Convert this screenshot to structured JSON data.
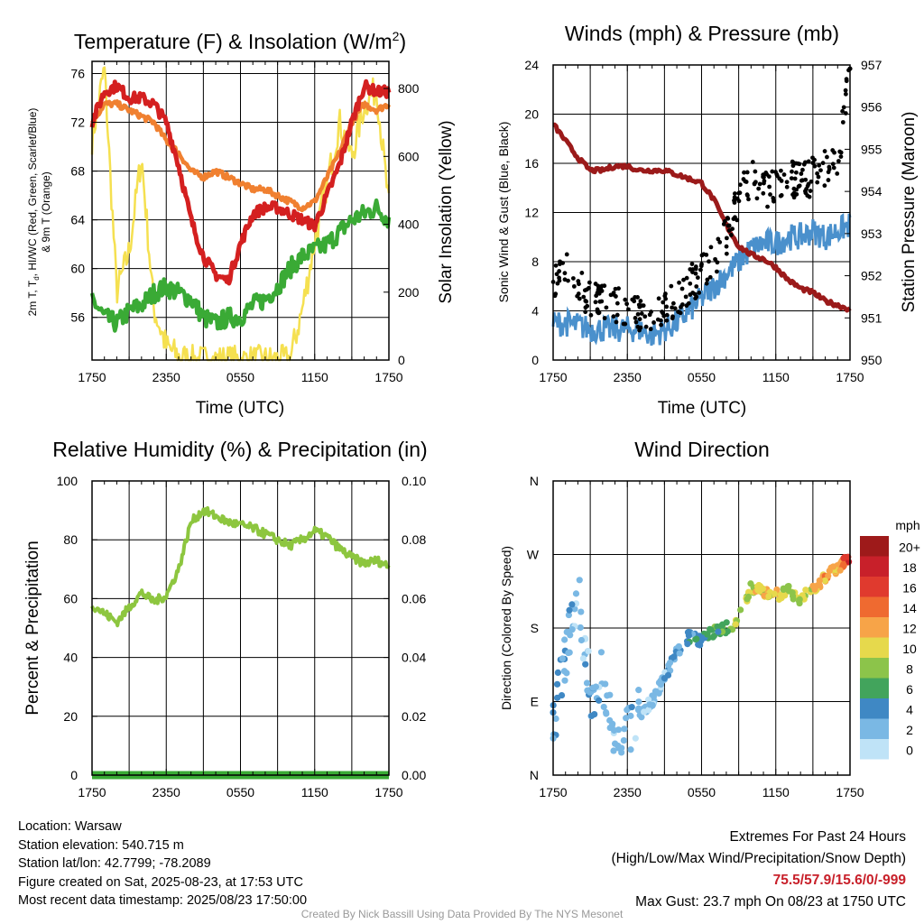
{
  "panels": {
    "temperature": {
      "title": "Temperature (F) & Insolation (W/m",
      "title_sup": "2",
      "title_end": ")",
      "ylabel_lines": [
        "2m T, T",
        "d",
        ", HI/WC (Red, Green, Scarlet/Blue)",
        "& 9m T (Orange)"
      ],
      "y2label": "Solar Insolation (Yellow)",
      "xlabel": "Time (UTC)",
      "y_ticks": [
        "56",
        "60",
        "64",
        "68",
        "72",
        "76"
      ],
      "y2_ticks": [
        "0",
        "200",
        "400",
        "600",
        "800"
      ]
    },
    "winds": {
      "title": "Winds (mph) & Pressure (mb)",
      "ylabel": "Sonic Wind & Gust (Blue, Black)",
      "y2label": "Station Pressure (Maroon)",
      "xlabel": "Time (UTC)",
      "y_ticks": [
        "0",
        "4",
        "8",
        "12",
        "16",
        "20",
        "24"
      ],
      "y2_ticks": [
        "950",
        "951",
        "952",
        "953",
        "954",
        "955",
        "956",
        "957"
      ]
    },
    "humidity": {
      "title": "Relative Humidity (%) & Precipitation (in)",
      "ylabel": "Percent & Precipitation",
      "y_ticks": [
        "0",
        "20",
        "40",
        "60",
        "80",
        "100"
      ],
      "y2_ticks": [
        "0.00",
        "0.02",
        "0.04",
        "0.06",
        "0.08",
        "0.10"
      ]
    },
    "direction": {
      "title": "Wind Direction",
      "ylabel": "Direction (Colored By Speed)",
      "y_ticks": [
        "N",
        "E",
        "S",
        "W",
        "N"
      ],
      "legend_title": "mph",
      "legend_labels": [
        "20+",
        "18",
        "16",
        "14",
        "12",
        "10",
        "8",
        "6",
        "4",
        "2",
        "0"
      ],
      "legend_colors": [
        "#9e1a1a",
        "#c8202a",
        "#e03a2e",
        "#ef6a30",
        "#f7a448",
        "#e6d94c",
        "#8cc44a",
        "#42a45c",
        "#3f88c4",
        "#7ab8e4",
        "#bfe3f7"
      ]
    }
  },
  "x_ticks": [
    "1750",
    "2350",
    "0550",
    "1150",
    "1750"
  ],
  "colors": {
    "air_temp": "#d42020",
    "temp_9m": "#f08030",
    "dewpoint": "#3aaa35",
    "insolation": "#f5e050",
    "wind": "#4a90cc",
    "gust": "#000000",
    "pressure": "#9b1a1a",
    "rh": "#8dc63f",
    "precip": "#3aaa35"
  },
  "chart_data": [
    {
      "type": "line",
      "title": "Temperature (F) & Insolation (W/m2)",
      "xlabel": "Time (UTC)",
      "ylabel": "2m T, Td, HI/WC (Red, Green, Scarlet/Blue) & 9m T (Orange)",
      "y2label": "Solar Insolation (Yellow)",
      "x": [
        0,
        1,
        2,
        3,
        4,
        5,
        6,
        7,
        8,
        9,
        10,
        11,
        12,
        13,
        14,
        15,
        16,
        17,
        18,
        19,
        20,
        21,
        22,
        23,
        24
      ],
      "ylim": [
        52.5,
        77
      ],
      "y2lim": [
        0,
        880
      ],
      "series": [
        {
          "name": "2m T",
          "axis": "y",
          "values": [
            72,
            74.5,
            75,
            74,
            74,
            73.5,
            72,
            68.5,
            64,
            61,
            59.5,
            59,
            62,
            64.5,
            65,
            65,
            64.5,
            64,
            63.5,
            66,
            68.5,
            72,
            75,
            74.5,
            74.5
          ]
        },
        {
          "name": "9m T",
          "axis": "y",
          "values": [
            72,
            73.5,
            73.5,
            73,
            72.5,
            72,
            70.5,
            69.5,
            68,
            67.5,
            68,
            67.5,
            67,
            66.5,
            66.5,
            66,
            65.5,
            65,
            65.5,
            67.5,
            69.5,
            72,
            73.5,
            73,
            73.5
          ]
        },
        {
          "name": "Td",
          "axis": "y",
          "values": [
            57.5,
            56,
            55.5,
            56.5,
            57,
            58,
            58.5,
            58,
            57.5,
            56,
            55.5,
            56,
            56,
            57,
            57.5,
            58.5,
            60,
            61,
            61.5,
            62,
            63,
            64,
            64.5,
            65,
            64
          ]
        },
        {
          "name": "Insolation",
          "axis": "y2",
          "values": [
            650,
            860,
            200,
            320,
            600,
            150,
            40,
            10,
            0,
            0,
            0,
            0,
            0,
            0,
            0,
            0,
            0,
            150,
            350,
            520,
            700,
            600,
            750,
            800,
            450
          ]
        }
      ]
    },
    {
      "type": "line",
      "title": "Winds (mph) & Pressure (mb)",
      "xlabel": "Time (UTC)",
      "ylabel": "Sonic Wind & Gust (Blue, Black)",
      "y2label": "Station Pressure (Maroon)",
      "x": [
        0,
        1,
        2,
        3,
        4,
        5,
        6,
        7,
        8,
        9,
        10,
        11,
        12,
        13,
        14,
        15,
        16,
        17,
        18,
        19,
        20,
        21,
        22,
        23,
        24
      ],
      "ylim": [
        0,
        24
      ],
      "y2lim": [
        950,
        957
      ],
      "series": [
        {
          "name": "Sonic Wind",
          "axis": "y",
          "values": [
            3,
            3,
            2.8,
            2.5,
            2.5,
            2.5,
            2.5,
            2.5,
            2,
            2.5,
            3,
            4,
            5,
            6,
            7,
            8,
            9,
            9.5,
            9.5,
            10,
            10,
            10.5,
            10,
            10.5,
            11
          ]
        },
        {
          "name": "Gust",
          "axis": "y",
          "values": [
            6,
            8,
            6,
            5,
            5,
            4.5,
            4,
            4,
            3.5,
            4,
            5,
            6,
            7,
            8,
            10,
            13,
            15,
            13.5,
            14.5,
            15,
            14.5,
            15,
            15.5,
            16,
            23.7
          ]
        },
        {
          "name": "Station Pressure",
          "axis": "y2",
          "values": [
            955.6,
            955.2,
            954.8,
            954.5,
            954.5,
            954.6,
            954.6,
            954.5,
            954.5,
            954.5,
            954.4,
            954.3,
            954.2,
            953.8,
            953.2,
            952.7,
            952.5,
            952.4,
            952.2,
            951.9,
            951.7,
            951.6,
            951.4,
            951.3,
            951.2
          ]
        }
      ]
    },
    {
      "type": "line",
      "title": "Relative Humidity (%) & Precipitation (in)",
      "ylabel": "Percent & Precipitation",
      "x": [
        0,
        1,
        2,
        3,
        4,
        5,
        6,
        7,
        8,
        9,
        10,
        11,
        12,
        13,
        14,
        15,
        16,
        17,
        18,
        19,
        20,
        21,
        22,
        23,
        24
      ],
      "ylim": [
        0,
        100
      ],
      "y2lim": [
        0,
        0.1
      ],
      "series": [
        {
          "name": "RH",
          "axis": "y",
          "values": [
            58,
            55,
            52,
            57,
            62,
            59,
            61,
            70,
            86,
            90,
            88,
            86,
            85,
            84,
            82,
            80,
            78,
            80,
            83,
            81,
            77,
            74,
            72,
            73,
            71
          ]
        },
        {
          "name": "Precipitation",
          "axis": "y2",
          "values": [
            0,
            0,
            0,
            0,
            0,
            0,
            0,
            0,
            0,
            0,
            0,
            0,
            0,
            0,
            0,
            0,
            0,
            0,
            0,
            0,
            0,
            0,
            0,
            0,
            0
          ]
        }
      ]
    },
    {
      "type": "scatter",
      "title": "Wind Direction",
      "ylabel": "Direction (Colored By Speed)",
      "x": [
        0,
        1,
        2,
        3,
        4,
        5,
        6,
        7,
        8,
        9,
        10,
        11,
        12,
        13,
        14,
        15,
        16,
        17,
        18,
        19,
        20,
        21,
        22,
        23,
        24
      ],
      "ylim": [
        0,
        360
      ],
      "series": [
        {
          "name": "Direction",
          "values": [
            60,
            150,
            230,
            100,
            120,
            40,
            60,
            75,
            90,
            120,
            150,
            170,
            165,
            175,
            180,
            190,
            230,
            225,
            220,
            225,
            215,
            230,
            240,
            255,
            265
          ]
        },
        {
          "name": "Speed",
          "values": [
            3,
            3,
            2,
            2,
            2,
            2,
            2,
            2,
            2,
            2,
            3,
            4,
            5,
            6,
            7,
            8,
            10,
            10,
            11,
            9,
            9,
            10,
            12,
            11,
            17
          ]
        }
      ]
    }
  ],
  "footer": {
    "info_lines": [
      "Location: Warsaw",
      "Station elevation: 540.715 m",
      "Station lat/lon: 42.7799; -78.2089",
      "Figure created on Sat, 2025-08-23, at 17:53 UTC",
      "Most recent data timestamp: 2025/08/23 17:50:00"
    ],
    "extremes_title": "Extremes For Past 24 Hours",
    "extremes_subtitle": "(High/Low/Max Wind/Precipitation/Snow Depth)",
    "extremes_values": "75.5/57.9/15.6/0/-999",
    "max_gust": "Max Gust: 23.7 mph On 08/23 at 1750 UTC",
    "credit": "Created By Nick Bassill Using Data Provided By The NYS Mesonet"
  }
}
